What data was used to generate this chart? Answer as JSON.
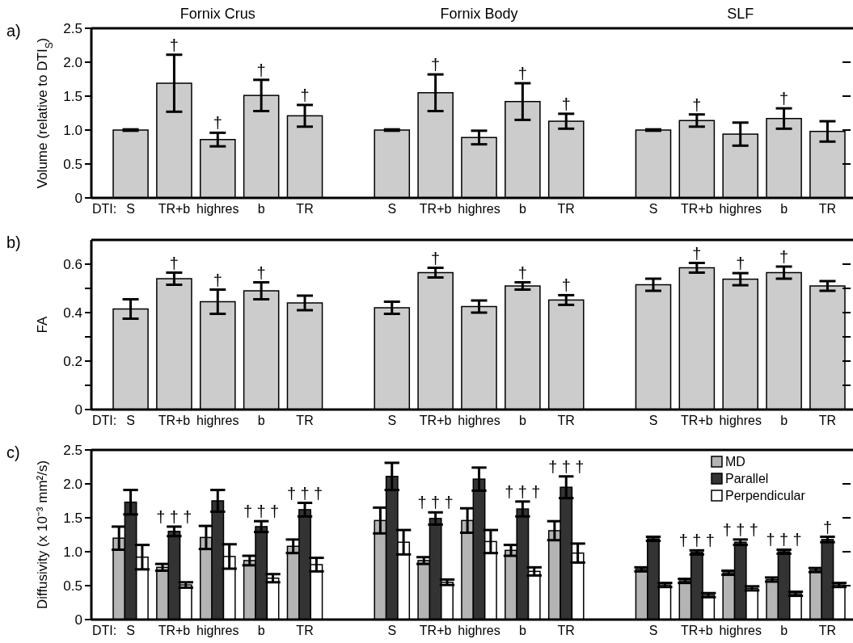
{
  "chart_data": [
    {
      "type": "bar",
      "ylabel": "Volume (relative to DTI$_{S}$)",
      "annotations": [
        "a)",
        "Fornix Crus",
        "Fornix Body",
        "SLF",
        "DTI:"
      ],
      "categories": [
        "S",
        "TR+b",
        "highres",
        "b",
        "TR",
        null,
        "S",
        "TR+b",
        "highres",
        "b",
        "TR",
        null,
        "S",
        "TR+b",
        "highres",
        "b",
        "TR"
      ],
      "color": "#cccccc",
      "values": [
        1.0,
        1.69,
        0.86,
        1.51,
        1.21,
        null,
        1.0,
        1.55,
        0.89,
        1.42,
        1.13,
        null,
        1.0,
        1.14,
        0.94,
        1.17,
        0.98
      ],
      "errors": [
        0.01,
        0.42,
        0.1,
        0.23,
        0.16,
        null,
        0.01,
        0.27,
        0.1,
        0.27,
        0.11,
        null,
        0.01,
        0.09,
        0.17,
        0.15,
        0.15
      ],
      "value_labels": [
        null,
        "†",
        "†",
        "†",
        "†",
        null,
        null,
        "†",
        null,
        "†",
        "†",
        null,
        null,
        "†",
        null,
        "†",
        null
      ],
      "ylim": [
        0,
        2.5
      ],
      "yticks": [
        0,
        0.5,
        {
          "value": 1,
          "label": "1.0"
        },
        1.5,
        {
          "value": 2,
          "label": "2.0"
        },
        2.5
      ]
    },
    {
      "type": "bar",
      "ylabel": "FA",
      "annotations": [
        "b)",
        "DTI:"
      ],
      "categories": [
        "S",
        "TR+b",
        "highres",
        "b",
        "TR",
        null,
        "S",
        "TR+b",
        "highres",
        "b",
        "TR",
        null,
        "S",
        "TR+b",
        "highres",
        "b",
        "TR"
      ],
      "color": "#cccccc",
      "values": [
        0.415,
        0.54,
        0.445,
        0.49,
        0.44,
        null,
        0.42,
        0.565,
        0.425,
        0.51,
        0.452,
        null,
        0.515,
        0.585,
        0.538,
        0.565,
        0.51
      ],
      "errors": [
        0.04,
        0.025,
        0.05,
        0.035,
        0.03,
        null,
        0.025,
        0.02,
        0.025,
        0.015,
        0.02,
        null,
        0.025,
        0.02,
        0.025,
        0.025,
        0.02
      ],
      "value_labels": [
        null,
        "†",
        "†",
        "†",
        null,
        null,
        null,
        "†",
        null,
        "†",
        "†",
        null,
        null,
        "†",
        "†",
        "†",
        null
      ],
      "ylim": [
        0,
        0.7
      ],
      "yticks": [
        0,
        {
          "value": 0.1,
          "label": null
        },
        0.2,
        {
          "value": 0.3,
          "label": null
        },
        0.4,
        {
          "value": 0.5,
          "label": null
        },
        0.6
      ]
    },
    {
      "type": "bar",
      "ylabel": "Diffusivity (x 10⁻³ mm²/s)",
      "annotations": [
        "c)",
        "DTI:"
      ],
      "legend": "top right",
      "categories": [
        "S",
        "TR+b",
        "highres",
        "b",
        "TR",
        null,
        "S",
        "TR+b",
        "highres",
        "b",
        "TR",
        null,
        "S",
        "TR+b",
        "highres",
        "b",
        "TR"
      ],
      "series": [
        {
          "name": "MD",
          "color": "#b4b4b4",
          "values": [
            1.2,
            0.77,
            1.21,
            0.87,
            1.08,
            null,
            1.46,
            0.87,
            1.46,
            1.02,
            1.31,
            null,
            0.74,
            0.57,
            0.69,
            0.59,
            0.73
          ],
          "errors": [
            0.17,
            0.05,
            0.17,
            0.07,
            0.1,
            null,
            0.19,
            0.05,
            0.18,
            0.08,
            0.14,
            null,
            0.03,
            0.03,
            0.03,
            0.03,
            0.03
          ]
        },
        {
          "name": "Parallel",
          "color": "#333333",
          "values": [
            1.73,
            1.3,
            1.75,
            1.37,
            1.62,
            null,
            2.11,
            1.49,
            2.07,
            1.63,
            1.95,
            null,
            1.19,
            0.99,
            1.14,
            1.0,
            1.18
          ],
          "errors": [
            0.18,
            0.07,
            0.16,
            0.08,
            0.1,
            null,
            0.2,
            0.09,
            0.17,
            0.11,
            0.16,
            null,
            0.03,
            0.03,
            0.04,
            0.03,
            0.04
          ],
          "value_labels": [
            null,
            "†††",
            null,
            "†††",
            "†††",
            null,
            null,
            "†††",
            null,
            "†††",
            "†††",
            null,
            null,
            "†††",
            "†††",
            "†††",
            "†"
          ]
        },
        {
          "name": "Perpendicular",
          "color": "#ffffff",
          "values": [
            0.92,
            0.51,
            0.93,
            0.61,
            0.81,
            null,
            1.14,
            0.55,
            1.15,
            0.71,
            0.98,
            null,
            0.51,
            0.36,
            0.46,
            0.38,
            0.51
          ],
          "errors": [
            0.18,
            0.04,
            0.18,
            0.06,
            0.1,
            null,
            0.18,
            0.04,
            0.17,
            0.06,
            0.14,
            null,
            0.03,
            0.03,
            0.03,
            0.03,
            0.03
          ]
        }
      ],
      "ylim": [
        0,
        2.5
      ],
      "yticks": [
        0,
        0.5,
        {
          "value": 1,
          "label": "1.0"
        },
        1.5,
        {
          "value": 2,
          "label": "2.0"
        },
        2.5
      ]
    }
  ]
}
